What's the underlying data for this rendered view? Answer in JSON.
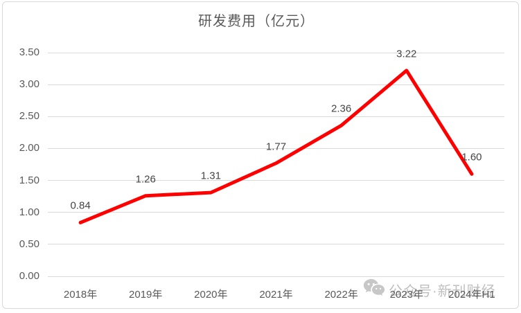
{
  "chart_data": {
    "type": "line",
    "title": "研发费用（亿元）",
    "categories": [
      "2018年",
      "2019年",
      "2020年",
      "2021年",
      "2022年",
      "2023年",
      "2024年H1"
    ],
    "values": [
      0.84,
      1.26,
      1.31,
      1.77,
      2.36,
      3.22,
      1.6
    ],
    "data_labels": [
      "0.84",
      "1.26",
      "1.31",
      "1.77",
      "2.36",
      "3.22",
      "1.60"
    ],
    "y_ticks": [
      "3.50",
      "3.00",
      "2.50",
      "2.00",
      "1.50",
      "1.00",
      "0.50",
      "0.00"
    ],
    "ylim": [
      0,
      3.5
    ],
    "y_tick_step": 0.5,
    "grid": true,
    "legend": "none",
    "xlabel": "",
    "ylabel": "",
    "line_color": "#ff0000"
  },
  "watermark": {
    "icon": "wechat-icon",
    "text": "公众号·新刊财经"
  },
  "colors": {
    "grid": "#d9d9d9",
    "axis_text": "#595959",
    "data_label_text": "#444444",
    "line": "#ff0000",
    "card_border": "#d9d9d9",
    "watermark": "#8c8c8c"
  }
}
